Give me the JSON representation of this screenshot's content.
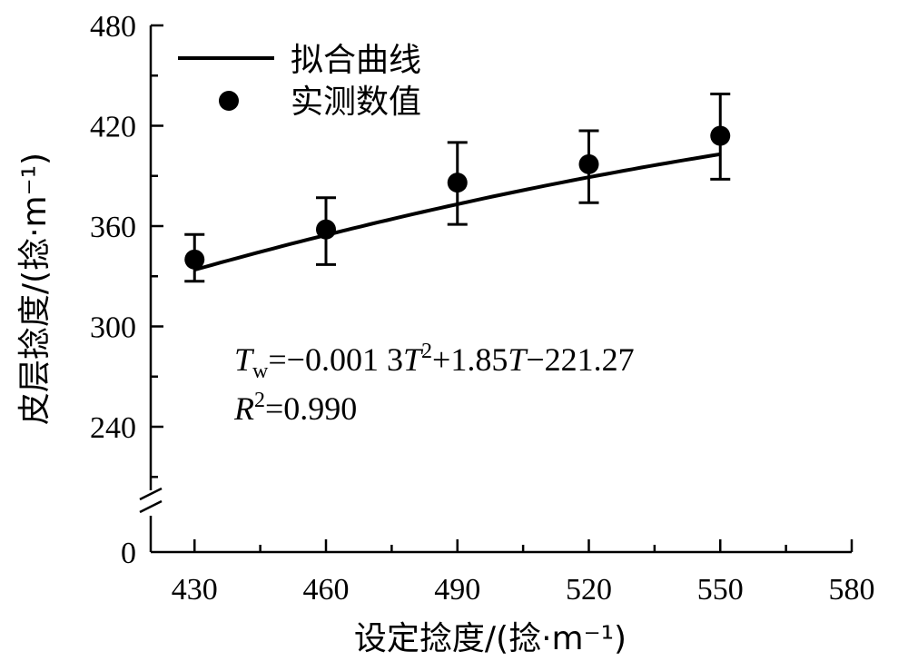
{
  "chart_data": {
    "type": "scatter",
    "xlabel": "设定捻度/(捻·m⁻¹)",
    "ylabel": "皮层捻度/(捻·m⁻¹)",
    "xlim": [
      420,
      580
    ],
    "ylim_upper": [
      210,
      480
    ],
    "y_axis_break": true,
    "x_ticks": [
      "430",
      "460",
      "490",
      "520",
      "550",
      "580"
    ],
    "y_ticks": [
      "0",
      "240",
      "300",
      "360",
      "420",
      "480"
    ],
    "legend": {
      "placement": "top-left",
      "fit_label": "拟合曲线",
      "points_label": "实测数值"
    },
    "equation": {
      "line1": "Tw=−0.001 3T²+1.85T−221.27",
      "line2": "R²=0.990"
    },
    "series": [
      {
        "name": "实测数值",
        "x": [
          430,
          460,
          490,
          520,
          550
        ],
        "y": [
          340,
          358,
          386,
          397,
          414
        ],
        "err_low": [
          327,
          337,
          361,
          374,
          388
        ],
        "err_high": [
          355,
          377,
          410,
          417,
          439
        ]
      },
      {
        "name": "拟合曲线",
        "formula": "-0.0013*T^2+1.85*T-221.27",
        "x_range": [
          430,
          550
        ]
      }
    ],
    "grid": false
  }
}
